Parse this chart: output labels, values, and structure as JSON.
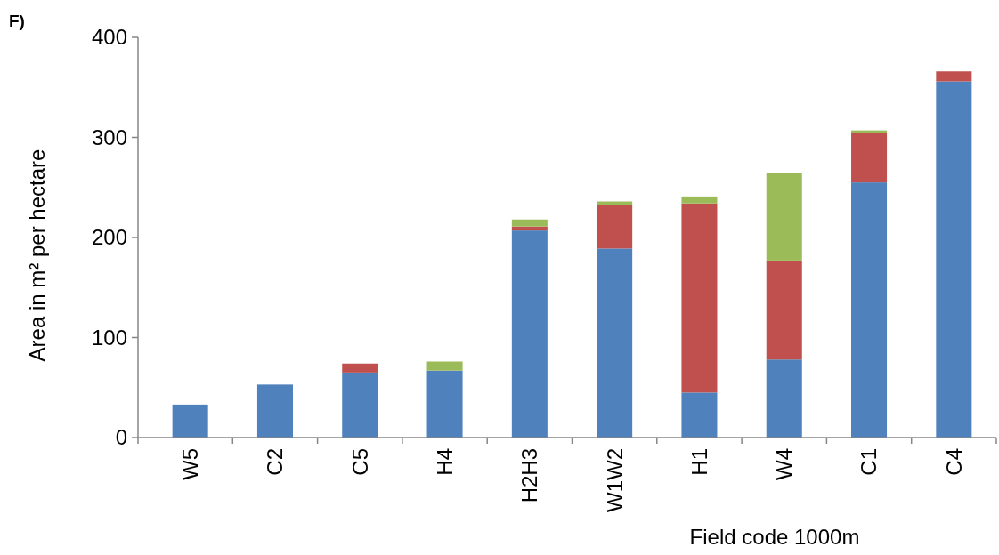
{
  "chart_data": {
    "type": "bar",
    "stacked": true,
    "title": "F)",
    "xlabel": "Field code 1000m",
    "ylabel": "Area in m² per hectare",
    "categories": [
      "W5",
      "C2",
      "C5",
      "H4",
      "H2H3",
      "W1W2",
      "H1",
      "W4",
      "C1",
      "C4"
    ],
    "series": [
      {
        "color": "#4f81bd",
        "values": [
          33,
          53,
          65,
          67,
          207,
          189,
          45,
          78,
          255,
          356
        ]
      },
      {
        "color": "#c0504d",
        "values": [
          0,
          0,
          9,
          0,
          4,
          43,
          189,
          99,
          49,
          10
        ]
      },
      {
        "color": "#9bbb59",
        "values": [
          0,
          0,
          0,
          9,
          7,
          4,
          7,
          87,
          3,
          0
        ]
      }
    ],
    "ylim": [
      0,
      400
    ],
    "yticks": [
      0,
      100,
      200,
      300,
      400
    ],
    "grid": false
  }
}
